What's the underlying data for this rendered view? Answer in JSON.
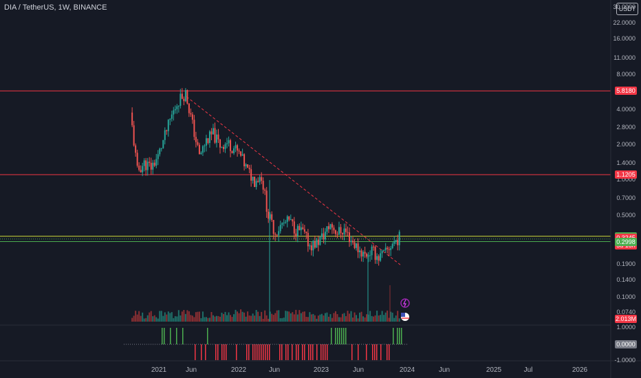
{
  "header": {
    "symbol_line": "DIA / TetherUS, 1W, BINANCE",
    "currency_button": "USDT"
  },
  "colors": {
    "bg": "#161a25",
    "up": "#26a69a",
    "down": "#ef5350",
    "resistance": "#f23645",
    "support": "#4caf50",
    "trend": "#f23645",
    "osc_up": "#4caf50",
    "osc_down": "#f23645"
  },
  "price_tags": [
    {
      "label": "5.8180",
      "color": "#f23645"
    },
    {
      "label": "1.1205",
      "color": "#f23645"
    },
    {
      "label": "0.3334",
      "color": "#4caf50"
    },
    {
      "label": "0.3245",
      "color": "#f23645"
    },
    {
      "label": "5d 16h",
      "color": "#f23645"
    },
    {
      "label": "0.2998",
      "color": "#4caf50"
    },
    {
      "label": "2.013M",
      "color": "#f23645"
    },
    {
      "label": "0.0000",
      "color": "#787b86"
    }
  ],
  "chart_data": {
    "type": "candlestick",
    "y_scale": "log",
    "y_ticks": [
      "30.0000",
      "22.0000",
      "16.0000",
      "11.0000",
      "8.0000",
      "4.0000",
      "2.8000",
      "2.0000",
      "1.4000",
      "1.0000",
      "0.7000",
      "0.5000",
      "0.1900",
      "0.1400",
      "0.1000",
      "0.0740"
    ],
    "x_ticks": [
      "2021",
      "Jun",
      "2022",
      "Jun",
      "2023",
      "Jun",
      "2024",
      "Jun",
      "2025",
      "Jul",
      "2026"
    ],
    "horizontal_levels": [
      5.818,
      1.1205,
      0.3334,
      0.2998
    ],
    "last_price": 0.3245,
    "trendline": {
      "from": [
        "2021-05",
        5.2
      ],
      "to": [
        "2023-12",
        0.19
      ]
    },
    "oscillator_ticks": [
      "1.0000",
      "0.0000",
      "-1.0000"
    ],
    "price_path": [
      [
        "2020-09",
        3.8
      ],
      [
        "2020-10",
        1.2
      ],
      [
        "2020-11",
        1.4
      ],
      [
        "2020-12",
        1.3
      ],
      [
        "2021-01",
        1.6
      ],
      [
        "2021-02",
        2.4
      ],
      [
        "2021-03",
        3.6
      ],
      [
        "2021-04",
        4.9
      ],
      [
        "2021-05",
        5.6
      ],
      [
        "2021-06",
        3.0
      ],
      [
        "2021-07",
        1.6
      ],
      [
        "2021-08",
        2.2
      ],
      [
        "2021-09",
        2.5
      ],
      [
        "2021-10",
        2.0
      ],
      [
        "2021-11",
        2.1
      ],
      [
        "2021-12",
        1.9
      ],
      [
        "2022-01",
        1.6
      ],
      [
        "2022-02",
        1.2
      ],
      [
        "2022-03",
        1.0
      ],
      [
        "2022-04",
        1.1
      ],
      [
        "2022-05",
        0.5
      ],
      [
        "2022-06",
        0.36
      ],
      [
        "2022-07",
        0.42
      ],
      [
        "2022-08",
        0.45
      ],
      [
        "2022-09",
        0.38
      ],
      [
        "2022-10",
        0.36
      ],
      [
        "2022-11",
        0.28
      ],
      [
        "2022-12",
        0.29
      ],
      [
        "2023-01",
        0.34
      ],
      [
        "2023-02",
        0.42
      ],
      [
        "2023-03",
        0.36
      ],
      [
        "2023-04",
        0.38
      ],
      [
        "2023-05",
        0.31
      ],
      [
        "2023-06",
        0.26
      ],
      [
        "2023-07",
        0.23
      ],
      [
        "2023-08",
        0.25
      ],
      [
        "2023-09",
        0.22
      ],
      [
        "2023-10",
        0.24
      ],
      [
        "2023-11",
        0.29
      ],
      [
        "2023-12",
        0.3245
      ]
    ]
  }
}
